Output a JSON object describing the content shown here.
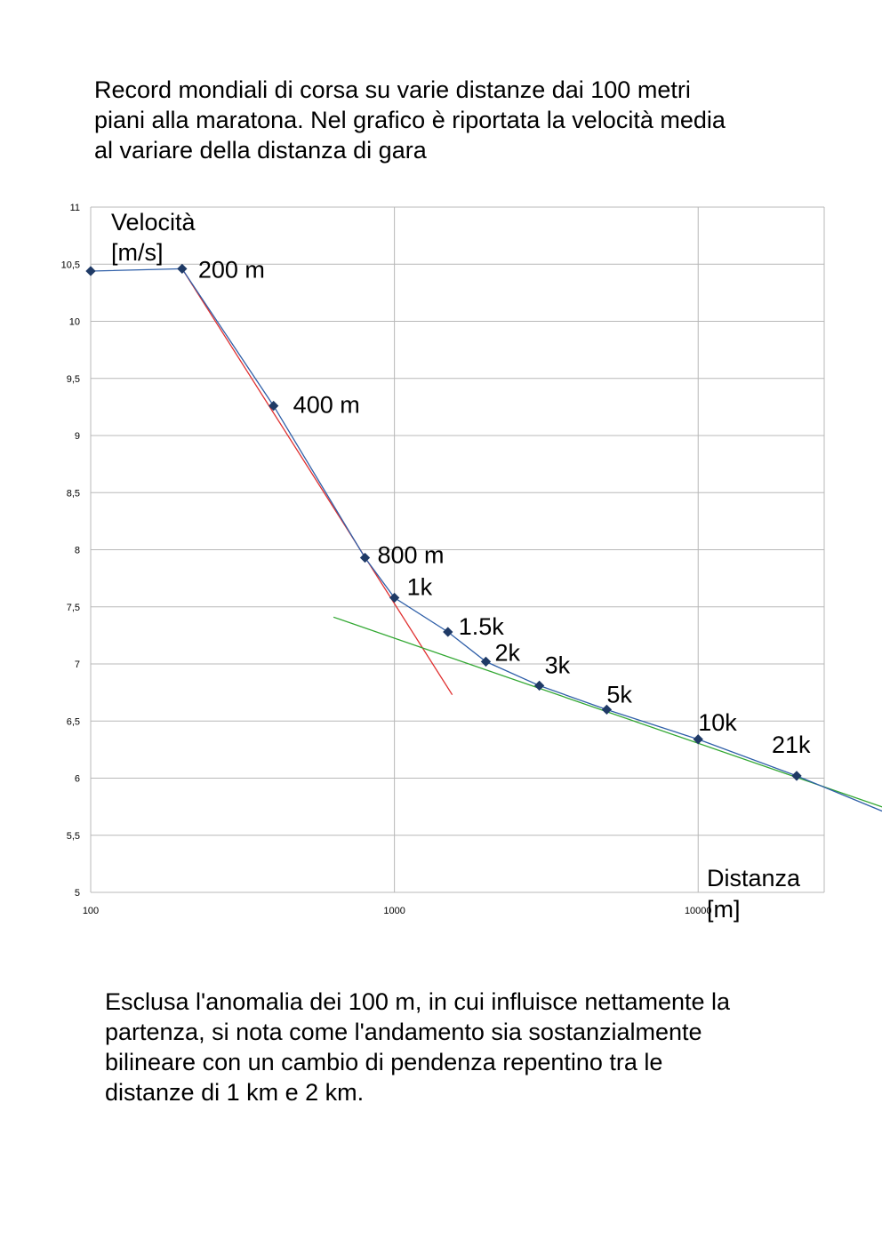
{
  "intro": {
    "lines": [
      "Record mondiali di corsa su varie distanze dai 100 metri",
      "piani alla maratona. Nel  grafico è riportata la velocità media",
      "al variare della distanza di gara"
    ]
  },
  "conclusion": {
    "lines": [
      "Esclusa l'anomalia dei 100 m, in cui influisce nettamente la",
      "partenza, si nota come l'andamento sia sostanzialmente",
      "bilineare con un cambio di pendenza repentino tra le",
      "distanze di 1 km e 2 km."
    ]
  },
  "chart_data": {
    "type": "line",
    "x_scale": "log",
    "xlim": [
      100,
      26000
    ],
    "ylim": [
      5,
      11
    ],
    "grid": true,
    "xlabel_lines": [
      "Distanza",
      "[m]"
    ],
    "ylabel_lines": [
      "Velocità",
      "[m/s]"
    ],
    "x_ticks": [
      "100",
      "1000",
      "10000"
    ],
    "x_tick_values": [
      100,
      1000,
      10000
    ],
    "y_ticks": [
      "5",
      "5,5",
      "6",
      "6,5",
      "7",
      "7,5",
      "8",
      "8,5",
      "9",
      "9,5",
      "10",
      "10,5",
      "11"
    ],
    "y_tick_values": [
      5,
      5.5,
      6,
      6.5,
      7,
      7.5,
      8,
      8.5,
      9,
      9.5,
      10,
      10.5,
      11
    ],
    "colors": {
      "series": "#2f5fa8",
      "marker": "#1f3a66",
      "fit_sprint": "#e03030",
      "fit_endurance": "#33a833",
      "grid": "#b8b8b8"
    },
    "series": [
      {
        "x": [
          100,
          200,
          400,
          800,
          1000,
          1500,
          2000,
          3000,
          5000,
          10000,
          21097,
          42195
        ],
        "y": [
          10.44,
          10.46,
          9.26,
          7.93,
          7.58,
          7.28,
          7.02,
          6.81,
          6.6,
          6.34,
          6.02,
          5.69
        ],
        "labels": [
          "",
          "200 m",
          "400 m",
          "800 m",
          "1k",
          "1.5k",
          "2k",
          "3k",
          "5k",
          "10k",
          "21k",
          ""
        ]
      }
    ],
    "trend_lines": [
      {
        "x": [
          200,
          1550
        ],
        "y": [
          10.46,
          6.73
        ]
      },
      {
        "x": [
          630,
          42195
        ],
        "y": [
          7.41,
          5.73
        ]
      }
    ]
  }
}
